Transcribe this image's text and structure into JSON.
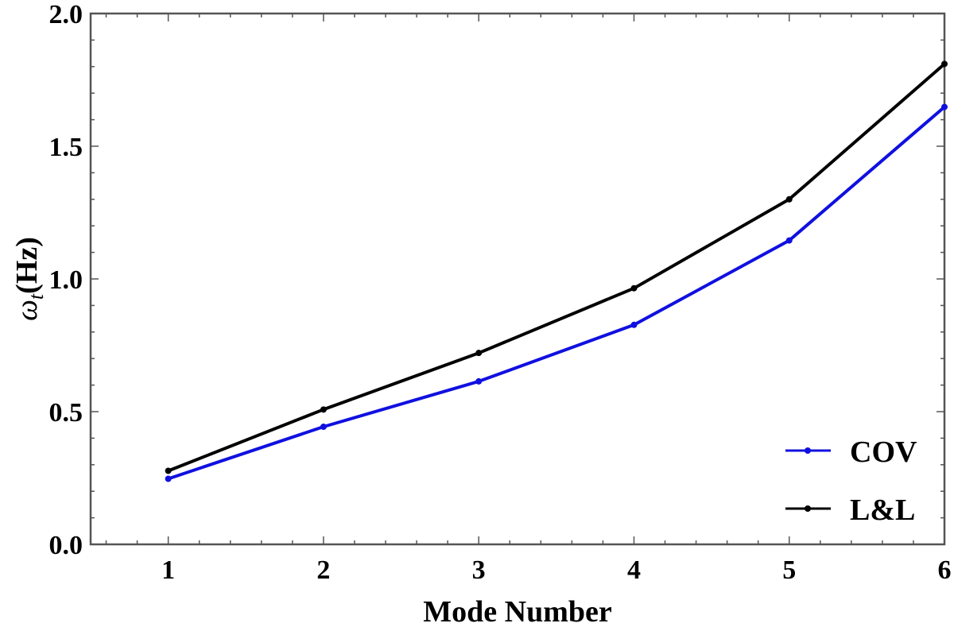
{
  "chart_data": {
    "type": "line",
    "title": "",
    "xlabel": "Mode Number",
    "ylabel_main": "ω",
    "ylabel_sub": "t",
    "ylabel_unit": "(Hz)",
    "x": [
      1,
      2,
      3,
      4,
      5,
      6
    ],
    "xlim": [
      0.5,
      6
    ],
    "ylim": [
      0.0,
      2.0
    ],
    "xticks": [
      1,
      2,
      3,
      4,
      5,
      6
    ],
    "yticks": [
      0.0,
      0.5,
      1.0,
      1.5,
      2.0
    ],
    "ytick_labels": [
      "0.0",
      "0.5",
      "1.0",
      "1.5",
      "2.0"
    ],
    "grid": false,
    "legend_position": "bottom-right",
    "series": [
      {
        "name": "COV",
        "color": "#1010e0",
        "values": [
          0.247,
          0.443,
          0.614,
          0.827,
          1.145,
          1.648
        ]
      },
      {
        "name": "L&L",
        "color": "#000000",
        "values": [
          0.277,
          0.508,
          0.721,
          0.965,
          1.3,
          1.81
        ]
      }
    ]
  }
}
